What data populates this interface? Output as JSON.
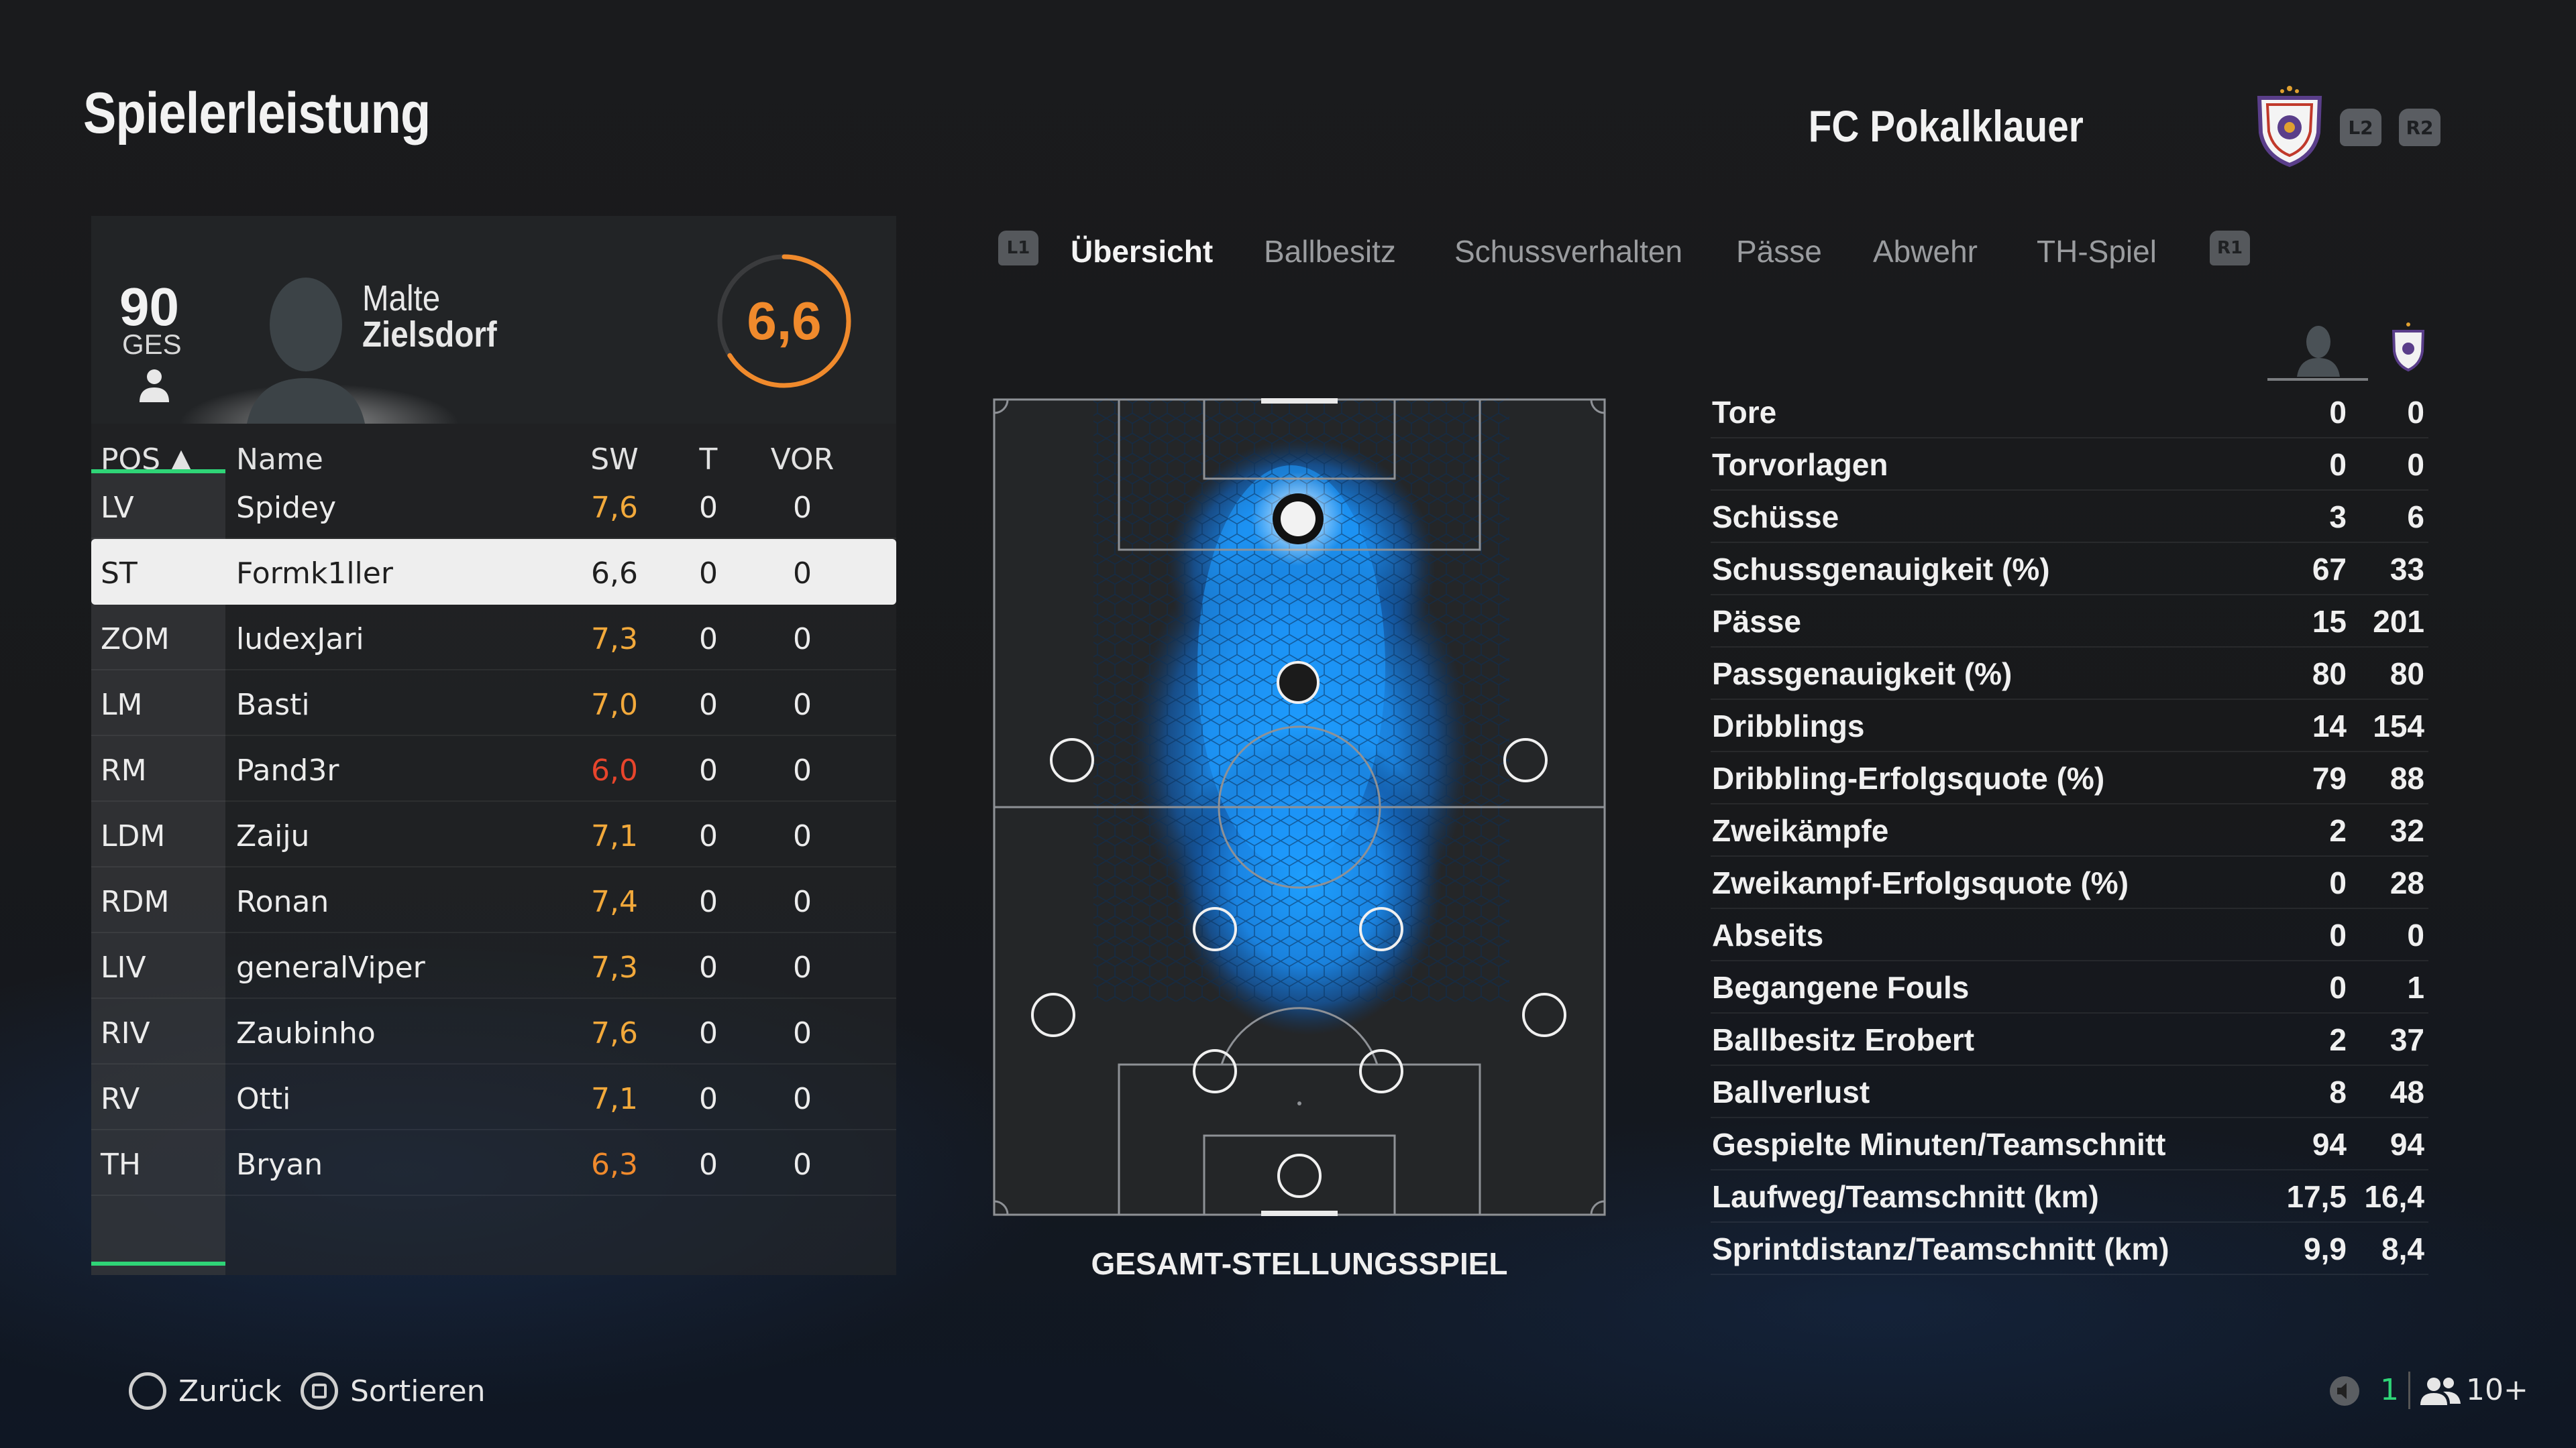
{
  "header": {
    "title": "Spielerleistung",
    "club_name": "FC Pokalklauer",
    "btn_left": "L2",
    "btn_right": "R2"
  },
  "player_card": {
    "overall": "90",
    "overall_label": "GES",
    "first_name": "Malte",
    "last_name": "Zielsdorf",
    "rating": "6,6",
    "rating_fraction": 0.66
  },
  "table": {
    "headers": {
      "pos": "POS ▲",
      "name": "Name",
      "sw": "SW",
      "t": "T",
      "vor": "VOR"
    },
    "rows": [
      {
        "pos": "LV",
        "name": "Spidey",
        "sw": "7,6",
        "t": "0",
        "vor": "0",
        "sw_color": "#f2a93b"
      },
      {
        "pos": "ST",
        "name": "Formk1ller",
        "sw": "6,6",
        "t": "0",
        "vor": "0",
        "sw_color": "#1f1f1f"
      },
      {
        "pos": "ZOM",
        "name": "ludexJari",
        "sw": "7,3",
        "t": "0",
        "vor": "0",
        "sw_color": "#f2a93b"
      },
      {
        "pos": "LM",
        "name": "Basti",
        "sw": "7,0",
        "t": "0",
        "vor": "0",
        "sw_color": "#f2a93b"
      },
      {
        "pos": "RM",
        "name": "Pand3r",
        "sw": "6,0",
        "t": "0",
        "vor": "0",
        "sw_color": "#e8452c"
      },
      {
        "pos": "LDM",
        "name": "Zaiju",
        "sw": "7,1",
        "t": "0",
        "vor": "0",
        "sw_color": "#f2a93b"
      },
      {
        "pos": "RDM",
        "name": "Ronan",
        "sw": "7,4",
        "t": "0",
        "vor": "0",
        "sw_color": "#f2a93b"
      },
      {
        "pos": "LIV",
        "name": "generalViper",
        "sw": "7,3",
        "t": "0",
        "vor": "0",
        "sw_color": "#f2a93b"
      },
      {
        "pos": "RIV",
        "name": "Zaubinho",
        "sw": "7,6",
        "t": "0",
        "vor": "0",
        "sw_color": "#f2a93b"
      },
      {
        "pos": "RV",
        "name": "Otti",
        "sw": "7,1",
        "t": "0",
        "vor": "0",
        "sw_color": "#f2a93b"
      },
      {
        "pos": "TH",
        "name": "Bryan",
        "sw": "6,3",
        "t": "0",
        "vor": "0",
        "sw_color": "#f08a2c"
      }
    ],
    "selected_index": 1
  },
  "tabs": {
    "left_btn": "L1",
    "right_btn": "R1",
    "items": [
      "Übersicht",
      "Ballbesitz",
      "Schussverhalten",
      "Pässe",
      "Abwehr",
      "TH-Spiel"
    ],
    "active_index": 0
  },
  "pitch": {
    "caption": "GESAMT-STELLUNGSSPIEL"
  },
  "stats": [
    {
      "label": "Tore",
      "player": "0",
      "team": "0"
    },
    {
      "label": "Torvorlagen",
      "player": "0",
      "team": "0"
    },
    {
      "label": "Schüsse",
      "player": "3",
      "team": "6"
    },
    {
      "label": "Schussgenauigkeit (%)",
      "player": "67",
      "team": "33"
    },
    {
      "label": "Pässe",
      "player": "15",
      "team": "201"
    },
    {
      "label": "Passgenauigkeit (%)",
      "player": "80",
      "team": "80"
    },
    {
      "label": "Dribblings",
      "player": "14",
      "team": "154"
    },
    {
      "label": "Dribbling-Erfolgsquote (%)",
      "player": "79",
      "team": "88"
    },
    {
      "label": "Zweikämpfe",
      "player": "2",
      "team": "32"
    },
    {
      "label": "Zweikampf-Erfolgsquote (%)",
      "player": "0",
      "team": "28"
    },
    {
      "label": "Abseits",
      "player": "0",
      "team": "0"
    },
    {
      "label": "Begangene Fouls",
      "player": "0",
      "team": "1"
    },
    {
      "label": "Ballbesitz Erobert",
      "player": "2",
      "team": "37"
    },
    {
      "label": "Ballverlust",
      "player": "8",
      "team": "48"
    },
    {
      "label": "Gespielte Minuten/Teamschnitt",
      "player": "94",
      "team": "94"
    },
    {
      "label": "Laufweg/Teamschnitt (km)",
      "player": "17,5",
      "team": "16,4"
    },
    {
      "label": "Sprintdistanz/Teamschnitt (km)",
      "player": "9,9",
      "team": "8,4"
    }
  ],
  "footer": {
    "back": "Zurück",
    "sort": "Sortieren",
    "count": "1",
    "players": "10+"
  },
  "colors": {
    "accent_green": "#2fd477",
    "rating_orange": "#f08a2c",
    "heatmap_blue": "#1e90ff"
  }
}
